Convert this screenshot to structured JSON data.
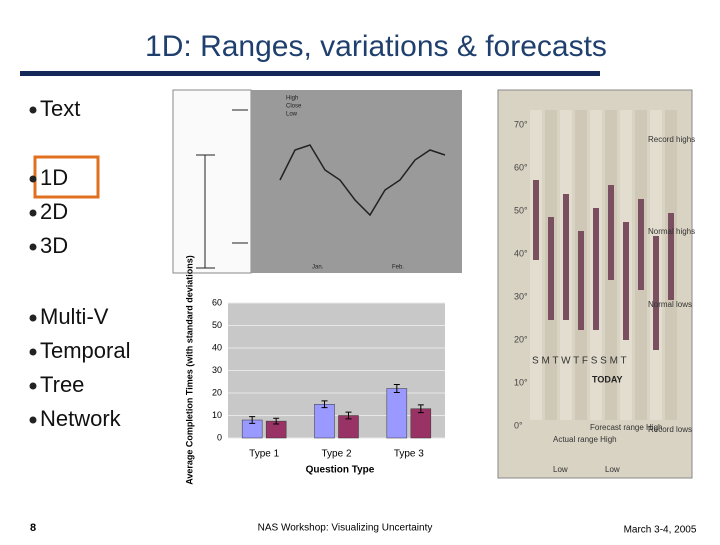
{
  "header": {
    "title": "1D: Ranges, variations & forecasts"
  },
  "bullets": [
    "Text",
    "1D",
    "2D",
    "3D",
    "Multi-V",
    "Temporal",
    "Tree",
    "Network"
  ],
  "stock_chart": {
    "legend": [
      "High",
      "Close",
      "Low"
    ],
    "months": [
      "Jan.",
      "Feb."
    ]
  },
  "weather_chart": {
    "temps": [
      "70°",
      "60°",
      "50°",
      "40°",
      "30°",
      "20°",
      "10°",
      "0°"
    ],
    "notes": [
      "Record highs",
      "Normal highs",
      "Normal lows",
      "Record lows"
    ],
    "days": "S M T W T F S S M T",
    "today": "TODAY",
    "forecast": "Forecast range High",
    "actual": "Actual range High",
    "low1": "Low",
    "low2": "Low"
  },
  "chart_data": {
    "type": "bar",
    "ylabel": "Average Completion Times (with standard deviations)",
    "xlabel": "Question Type",
    "categories": [
      "Type 1",
      "Type 2",
      "Type 3"
    ],
    "series": [
      {
        "color": "#9999ff",
        "values": [
          8,
          15,
          22
        ],
        "errors": [
          1.5,
          1.5,
          1.8
        ]
      },
      {
        "color": "#993366",
        "values": [
          7.5,
          10,
          13
        ],
        "errors": [
          1.3,
          1.5,
          1.7
        ]
      }
    ],
    "ylim": [
      0,
      60
    ],
    "yticks": [
      0,
      10,
      20,
      30,
      40,
      50,
      60
    ],
    "grid": true
  },
  "footer": {
    "page": "8",
    "event": "NAS Workshop: Visualizing Uncertainty",
    "date": "March 3-4, 2005"
  }
}
